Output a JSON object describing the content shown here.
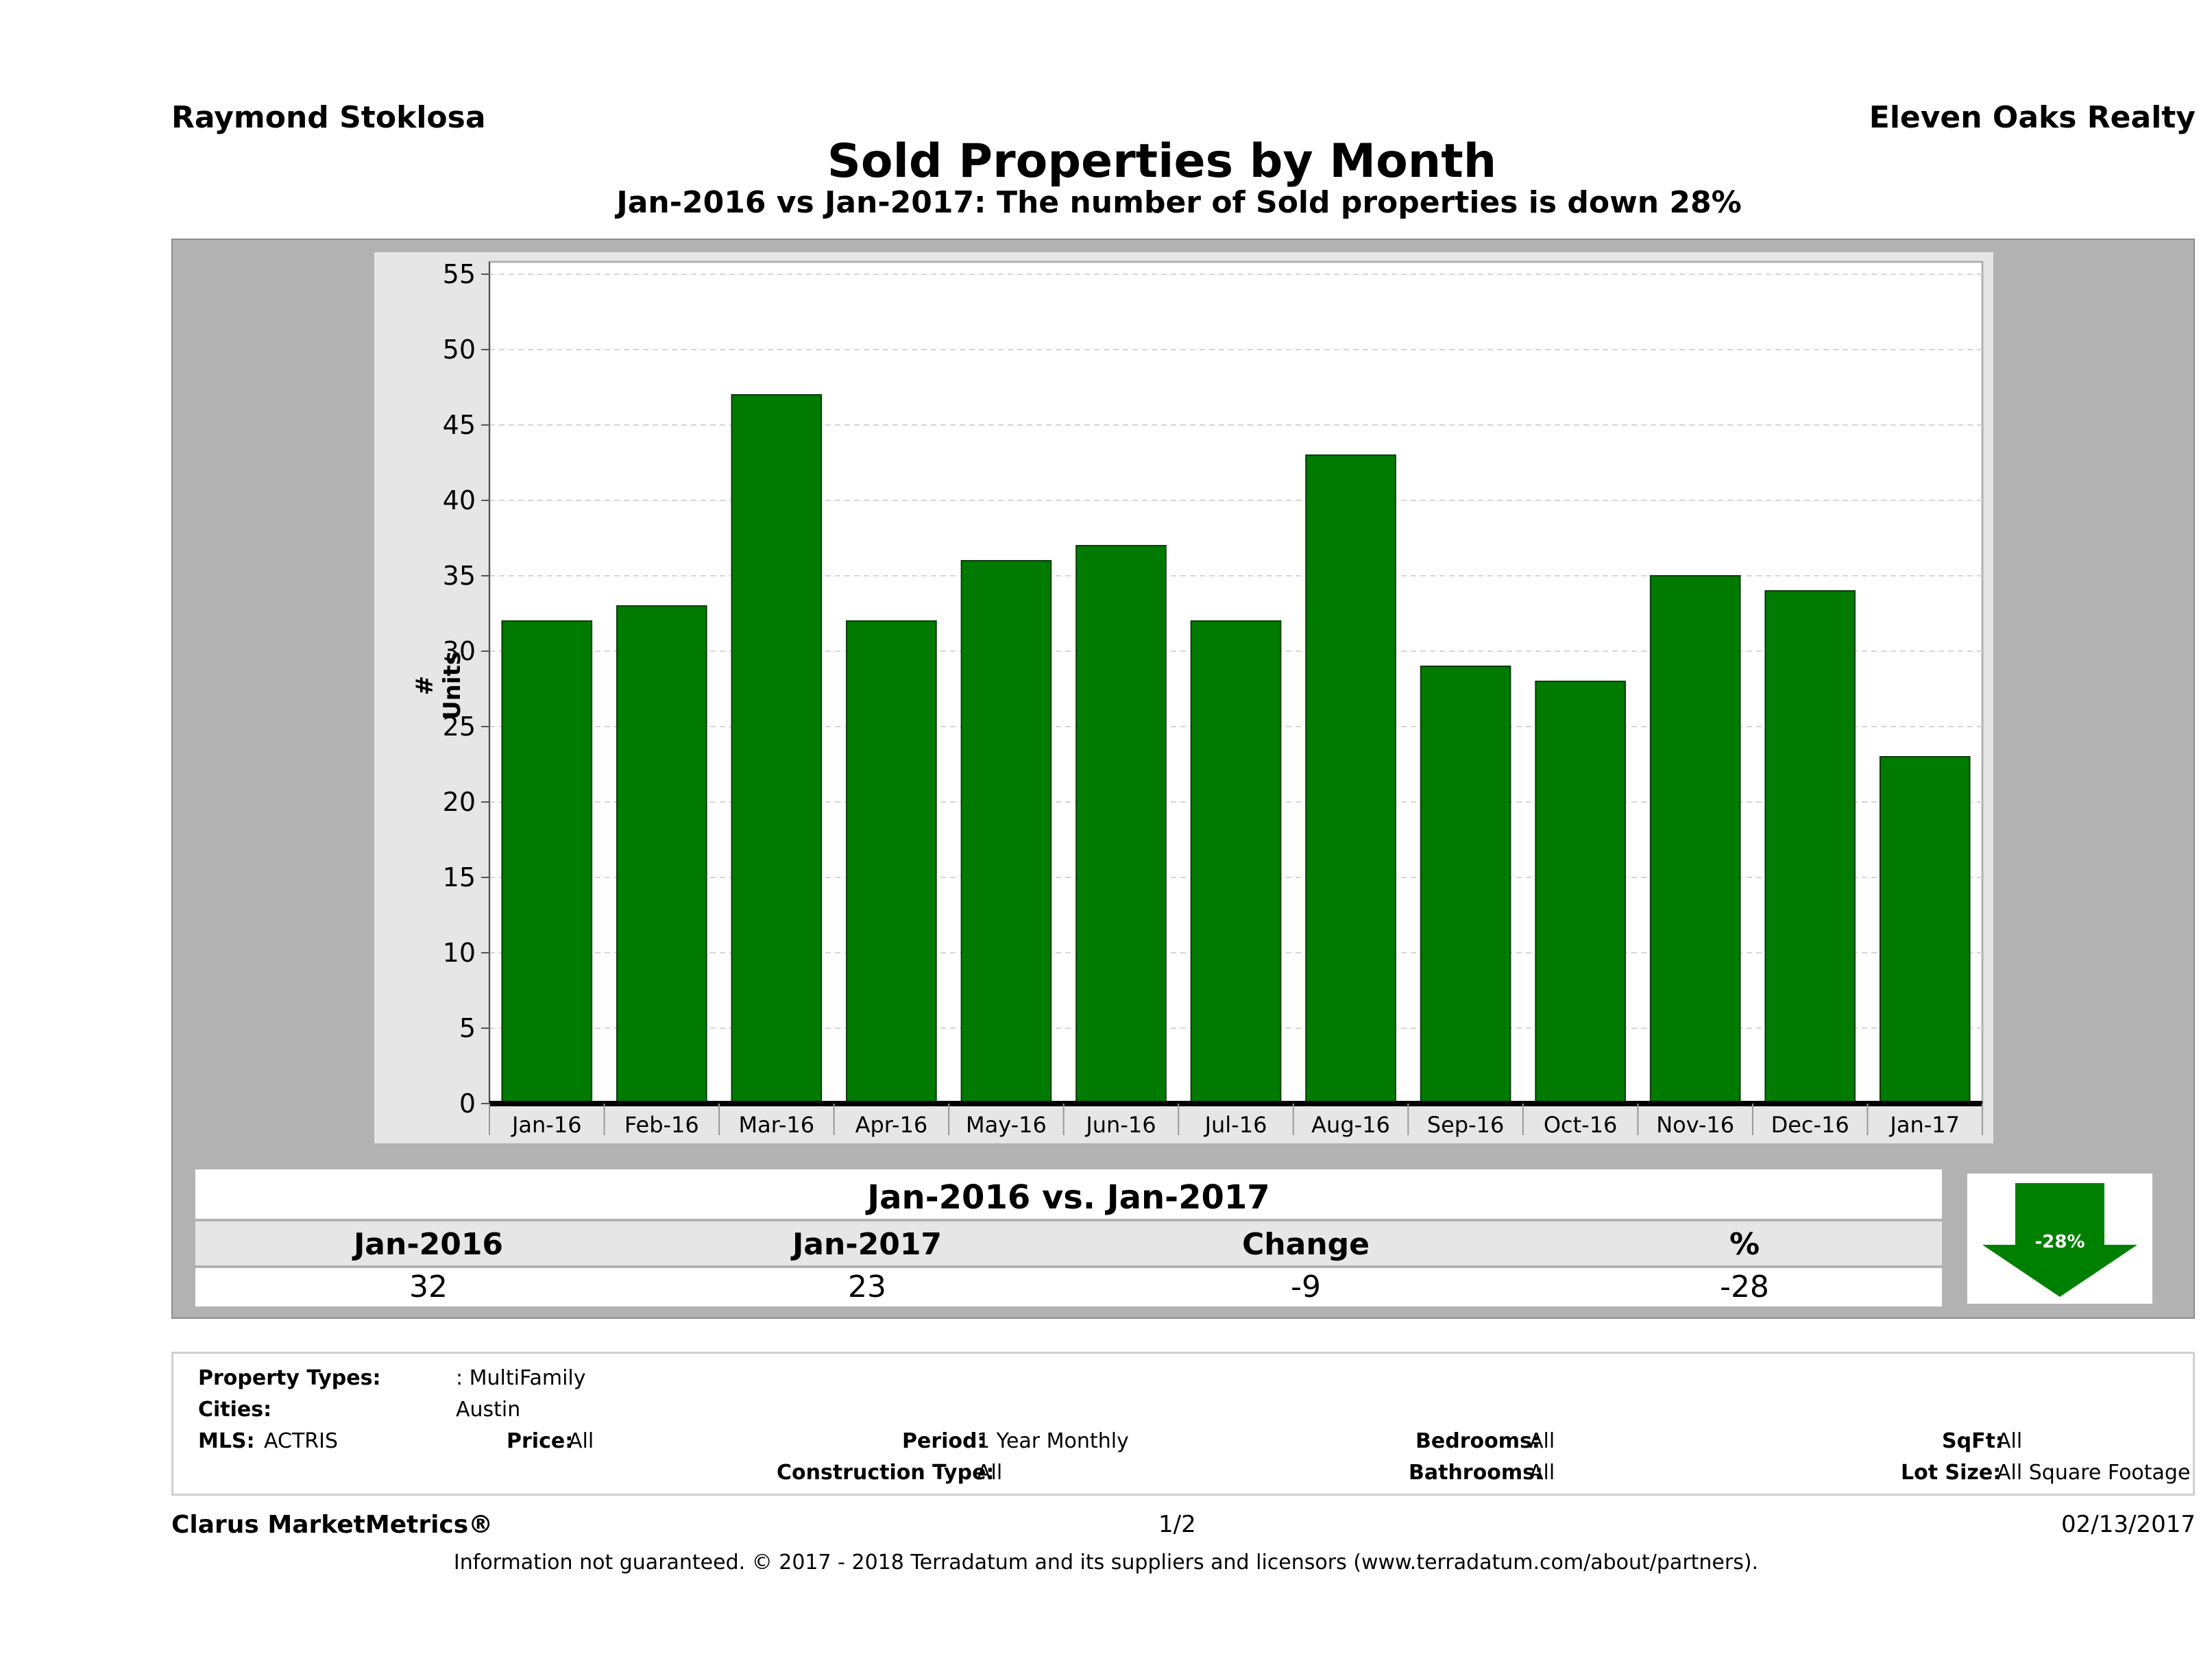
{
  "header": {
    "agent": "Raymond Stoklosa",
    "brokerage": "Eleven Oaks Realty",
    "title": "Sold Properties by Month",
    "subtitle": "Jan-2016 vs Jan-2017: The number of Sold   properties is down 28%"
  },
  "chart_data": {
    "type": "bar",
    "categories": [
      "Jan-16",
      "Feb-16",
      "Mar-16",
      "Apr-16",
      "May-16",
      "Jun-16",
      "Jul-16",
      "Aug-16",
      "Sep-16",
      "Oct-16",
      "Nov-16",
      "Dec-16",
      "Jan-17"
    ],
    "values": [
      32,
      33,
      47,
      32,
      36,
      37,
      32,
      43,
      29,
      28,
      35,
      34,
      23
    ],
    "title": "Sold Properties by Month",
    "xlabel": "",
    "ylabel": "# Units",
    "ylim": [
      0,
      55
    ],
    "yticks": [
      0,
      5,
      10,
      15,
      20,
      25,
      30,
      35,
      40,
      45,
      50,
      55
    ],
    "grid": true,
    "bar_color": "#007a00"
  },
  "summary": {
    "heading": "Jan-2016 vs. Jan-2017",
    "columns": [
      "Jan-2016",
      "Jan-2017",
      "Change",
      "%"
    ],
    "values": [
      "32",
      "23",
      "-9",
      "-28"
    ],
    "badge": "-28%",
    "badge_color": "#008000"
  },
  "filters": {
    "property_types_label": "Property Types:",
    "property_types_value": ": MultiFamily",
    "cities_label": "Cities:",
    "cities_value": "Austin",
    "mls_label": "MLS:",
    "mls_value": "ACTRIS",
    "price_label": "Price:",
    "price_value": "All",
    "period_label": "Period:",
    "period_value": "1 Year Monthly",
    "construction_label": "Construction Type:",
    "construction_value": "All",
    "bedrooms_label": "Bedrooms:",
    "bedrooms_value": "All",
    "bathrooms_label": "Bathrooms:",
    "bathrooms_value": "All",
    "sqft_label": "SqFt:",
    "sqft_value": "All",
    "lot_label": "Lot Size:",
    "lot_value": "All Square Footage"
  },
  "footer": {
    "brand": "Clarus MarketMetrics®",
    "page": "1/2",
    "date": "02/13/2017",
    "disclaimer": "Information not guaranteed. © 2017 - 2018 Terradatum and its suppliers and licensors (www.terradatum.com/about/partners)."
  }
}
